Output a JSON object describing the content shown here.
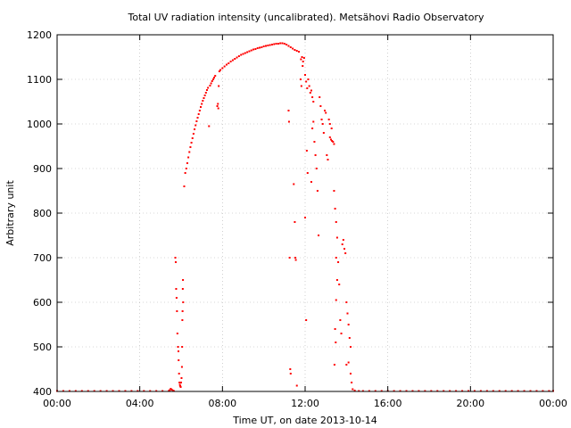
{
  "chart_data": {
    "type": "scatter",
    "title": "Total UV radiation intensity (uncalibrated). Metsähovi Radio Observatory",
    "xlabel": "Time UT, on date 2013-10-14",
    "ylabel": "Arbitrary unit",
    "xlim": [
      0,
      24
    ],
    "ylim": [
      400,
      1200
    ],
    "x_ticks": [
      "00:00",
      "04:00",
      "08:00",
      "12:00",
      "16:00",
      "20:00",
      "00:00"
    ],
    "y_ticks": [
      400,
      500,
      600,
      700,
      800,
      900,
      1000,
      1100,
      1200
    ],
    "grid": true,
    "series_color": "#ff0000",
    "series": [
      {
        "points": [
          [
            0.0,
            401
          ],
          [
            0.3,
            401
          ],
          [
            0.6,
            401
          ],
          [
            0.9,
            401
          ],
          [
            1.2,
            401
          ],
          [
            1.5,
            401
          ],
          [
            1.8,
            401
          ],
          [
            2.1,
            401
          ],
          [
            2.4,
            401
          ],
          [
            2.7,
            401
          ],
          [
            3.0,
            401
          ],
          [
            3.3,
            401
          ],
          [
            3.6,
            401
          ],
          [
            3.9,
            401
          ],
          [
            4.2,
            401
          ],
          [
            4.5,
            401
          ],
          [
            4.8,
            401
          ],
          [
            5.1,
            401
          ],
          [
            5.4,
            401
          ],
          [
            5.45,
            403
          ],
          [
            5.5,
            406
          ],
          [
            5.55,
            404
          ],
          [
            5.6,
            402
          ],
          [
            5.65,
            401
          ],
          [
            5.72,
            700
          ],
          [
            5.74,
            690
          ],
          [
            5.76,
            630
          ],
          [
            5.78,
            610
          ],
          [
            5.8,
            580
          ],
          [
            5.82,
            530
          ],
          [
            5.85,
            500
          ],
          [
            5.87,
            490
          ],
          [
            5.88,
            470
          ],
          [
            5.9,
            440
          ],
          [
            5.92,
            420
          ],
          [
            5.94,
            415
          ],
          [
            5.96,
            412
          ],
          [
            5.98,
            410
          ],
          [
            6.0,
            420
          ],
          [
            6.02,
            430
          ],
          [
            6.04,
            455
          ],
          [
            6.05,
            500
          ],
          [
            6.06,
            560
          ],
          [
            6.07,
            580
          ],
          [
            6.08,
            630
          ],
          [
            6.09,
            650
          ],
          [
            6.1,
            600
          ],
          [
            6.15,
            860
          ],
          [
            6.2,
            890
          ],
          [
            6.25,
            900
          ],
          [
            6.3,
            912
          ],
          [
            6.35,
            925
          ],
          [
            6.4,
            937
          ],
          [
            6.45,
            948
          ],
          [
            6.5,
            958
          ],
          [
            6.55,
            968
          ],
          [
            6.6,
            978
          ],
          [
            6.65,
            988
          ],
          [
            6.7,
            997
          ],
          [
            6.75,
            1006
          ],
          [
            6.8,
            1014
          ],
          [
            6.85,
            1022
          ],
          [
            6.9,
            1030
          ],
          [
            6.95,
            1038
          ],
          [
            7.0,
            1045
          ],
          [
            7.05,
            1052
          ],
          [
            7.1,
            1058
          ],
          [
            7.15,
            1064
          ],
          [
            7.2,
            1070
          ],
          [
            7.25,
            1076
          ],
          [
            7.3,
            1081
          ],
          [
            7.35,
            995
          ],
          [
            7.4,
            1086
          ],
          [
            7.45,
            1091
          ],
          [
            7.5,
            1096
          ],
          [
            7.55,
            1100
          ],
          [
            7.6,
            1104
          ],
          [
            7.65,
            1108
          ],
          [
            7.75,
            1040
          ],
          [
            7.78,
            1045
          ],
          [
            7.8,
            1035
          ],
          [
            7.82,
            1085
          ],
          [
            7.85,
            1118
          ],
          [
            7.9,
            1121
          ],
          [
            8.0,
            1125
          ],
          [
            8.1,
            1129
          ],
          [
            8.2,
            1133
          ],
          [
            8.3,
            1136
          ],
          [
            8.4,
            1140
          ],
          [
            8.5,
            1143
          ],
          [
            8.6,
            1146
          ],
          [
            8.7,
            1149
          ],
          [
            8.8,
            1152
          ],
          [
            8.9,
            1155
          ],
          [
            9.0,
            1157
          ],
          [
            9.1,
            1159
          ],
          [
            9.2,
            1161
          ],
          [
            9.3,
            1163
          ],
          [
            9.4,
            1165
          ],
          [
            9.5,
            1167
          ],
          [
            9.6,
            1168
          ],
          [
            9.7,
            1170
          ],
          [
            9.8,
            1171
          ],
          [
            9.9,
            1172
          ],
          [
            10.0,
            1174
          ],
          [
            10.1,
            1175
          ],
          [
            10.2,
            1176
          ],
          [
            10.3,
            1177
          ],
          [
            10.4,
            1178
          ],
          [
            10.5,
            1179
          ],
          [
            10.6,
            1180
          ],
          [
            10.7,
            1180
          ],
          [
            10.8,
            1181
          ],
          [
            10.9,
            1181
          ],
          [
            11.0,
            1180
          ],
          [
            11.1,
            1178
          ],
          [
            11.2,
            1175
          ],
          [
            11.3,
            1172
          ],
          [
            11.4,
            1169
          ],
          [
            11.5,
            1166
          ],
          [
            11.6,
            1164
          ],
          [
            11.7,
            1162
          ],
          [
            11.2,
            1030
          ],
          [
            11.22,
            1005
          ],
          [
            11.25,
            700
          ],
          [
            11.28,
            450
          ],
          [
            11.3,
            440
          ],
          [
            11.45,
            865
          ],
          [
            11.5,
            780
          ],
          [
            11.52,
            700
          ],
          [
            11.55,
            695
          ],
          [
            11.6,
            413
          ],
          [
            11.8,
            1145
          ],
          [
            11.85,
            1150
          ],
          [
            11.9,
            1140
          ],
          [
            11.95,
            1148
          ],
          [
            11.88,
            1130
          ],
          [
            11.78,
            1100
          ],
          [
            11.82,
            1085
          ],
          [
            12.0,
            1110
          ],
          [
            12.05,
            1095
          ],
          [
            12.1,
            1080
          ],
          [
            12.15,
            1100
          ],
          [
            12.2,
            1085
          ],
          [
            12.25,
            1070
          ],
          [
            12.3,
            1075
          ],
          [
            12.35,
            1060
          ],
          [
            12.4,
            1050
          ],
          [
            12.08,
            940
          ],
          [
            12.12,
            890
          ],
          [
            12.0,
            790
          ],
          [
            12.05,
            560
          ],
          [
            12.3,
            870
          ],
          [
            12.35,
            990
          ],
          [
            12.4,
            1005
          ],
          [
            12.45,
            960
          ],
          [
            12.5,
            930
          ],
          [
            12.55,
            900
          ],
          [
            12.6,
            850
          ],
          [
            12.65,
            750
          ],
          [
            12.7,
            1060
          ],
          [
            12.75,
            1040
          ],
          [
            12.8,
            1010
          ],
          [
            12.85,
            1000
          ],
          [
            12.9,
            980
          ],
          [
            12.95,
            1030
          ],
          [
            13.0,
            1025
          ],
          [
            13.05,
            930
          ],
          [
            13.1,
            920
          ],
          [
            13.15,
            1010
          ],
          [
            13.2,
            970
          ],
          [
            13.25,
            965
          ],
          [
            13.3,
            962
          ],
          [
            13.35,
            960
          ],
          [
            13.4,
            955
          ],
          [
            13.2,
            1000
          ],
          [
            13.28,
            990
          ],
          [
            13.4,
            850
          ],
          [
            13.45,
            810
          ],
          [
            13.5,
            780
          ],
          [
            13.55,
            745
          ],
          [
            13.5,
            700
          ],
          [
            13.6,
            690
          ],
          [
            13.55,
            650
          ],
          [
            13.5,
            605
          ],
          [
            13.45,
            540
          ],
          [
            13.48,
            510
          ],
          [
            13.42,
            460
          ],
          [
            13.65,
            640
          ],
          [
            13.7,
            560
          ],
          [
            13.75,
            530
          ],
          [
            13.8,
            730
          ],
          [
            13.85,
            740
          ],
          [
            13.9,
            720
          ],
          [
            13.95,
            710
          ],
          [
            14.0,
            600
          ],
          [
            14.05,
            575
          ],
          [
            14.1,
            550
          ],
          [
            14.15,
            520
          ],
          [
            14.2,
            500
          ],
          [
            14.0,
            460
          ],
          [
            14.1,
            465
          ],
          [
            14.2,
            440
          ],
          [
            14.25,
            420
          ],
          [
            14.3,
            405
          ],
          [
            14.4,
            402
          ],
          [
            14.6,
            401
          ],
          [
            14.8,
            401
          ],
          [
            15.1,
            401
          ],
          [
            15.4,
            401
          ],
          [
            15.7,
            401
          ],
          [
            16.0,
            401
          ],
          [
            16.3,
            401
          ],
          [
            16.6,
            401
          ],
          [
            16.9,
            401
          ],
          [
            17.2,
            401
          ],
          [
            17.5,
            401
          ],
          [
            17.8,
            401
          ],
          [
            18.1,
            401
          ],
          [
            18.4,
            401
          ],
          [
            18.7,
            401
          ],
          [
            19.0,
            401
          ],
          [
            19.3,
            401
          ],
          [
            19.6,
            401
          ],
          [
            19.9,
            401
          ],
          [
            20.2,
            401
          ],
          [
            20.5,
            401
          ],
          [
            20.8,
            401
          ],
          [
            21.1,
            401
          ],
          [
            21.4,
            401
          ],
          [
            21.7,
            401
          ],
          [
            22.0,
            401
          ],
          [
            22.3,
            401
          ],
          [
            22.6,
            401
          ],
          [
            22.9,
            401
          ],
          [
            23.2,
            401
          ],
          [
            23.5,
            401
          ],
          [
            23.8,
            401
          ],
          [
            24.0,
            401
          ]
        ]
      }
    ]
  }
}
